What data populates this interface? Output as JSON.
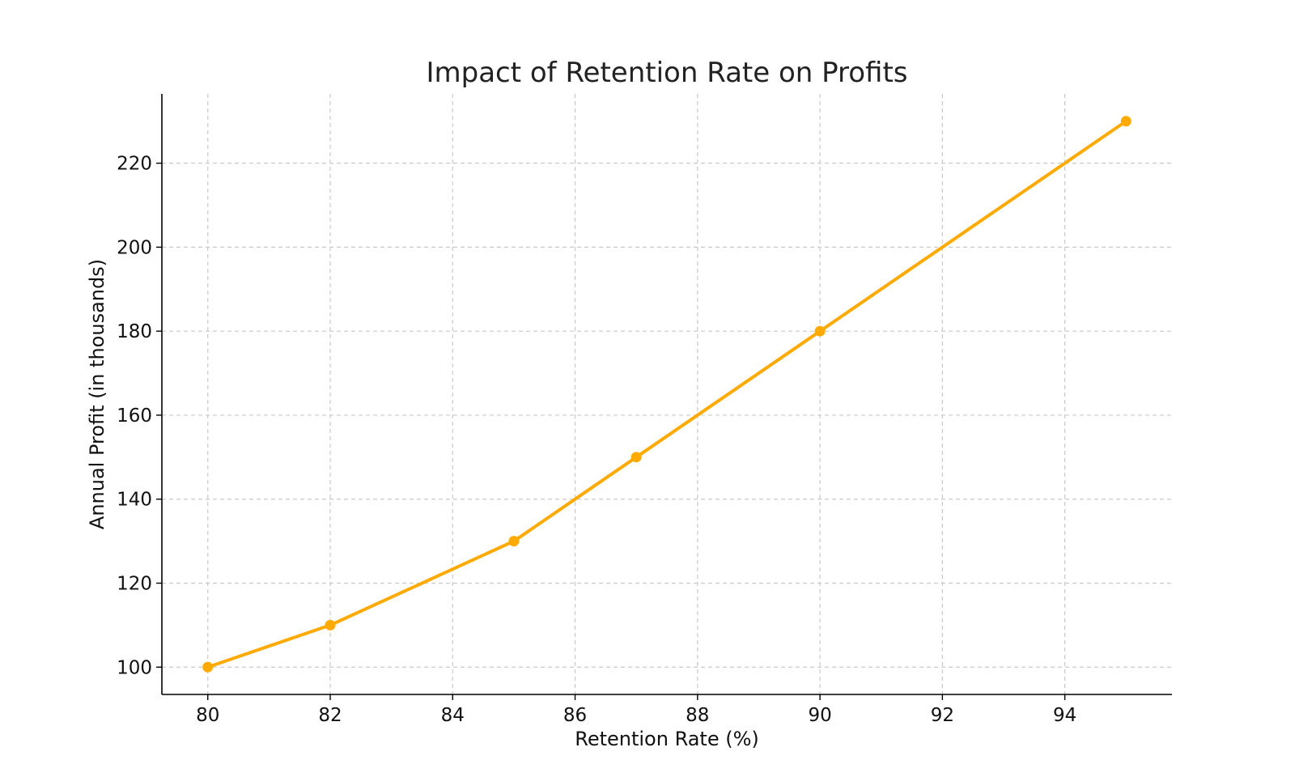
{
  "chart_data": {
    "type": "line",
    "title": "Impact of Retention Rate on Profits",
    "xlabel": "Retention Rate (%)",
    "ylabel": "Annual Profit (in thousands)",
    "x": [
      80,
      82,
      85,
      87,
      90,
      95
    ],
    "series": [
      {
        "values": [
          100,
          110,
          130,
          150,
          180,
          230
        ],
        "color": "#FFAA00",
        "marker": "circle"
      }
    ],
    "xlim": [
      79.25,
      95.75
    ],
    "ylim": [
      93.5,
      236.5
    ],
    "xticks": [
      80,
      82,
      84,
      86,
      88,
      90,
      92,
      94
    ],
    "yticks": [
      100,
      120,
      140,
      160,
      180,
      200,
      220
    ],
    "grid": true,
    "legend": false,
    "axis_spines": [
      "left",
      "bottom"
    ]
  }
}
